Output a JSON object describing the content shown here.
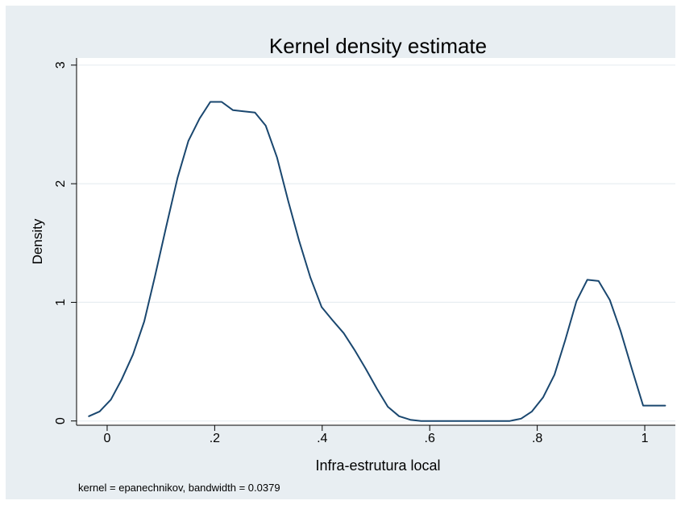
{
  "chart_data": {
    "type": "line",
    "title": "Kernel density estimate",
    "xlabel": "Infra-estrutura local",
    "ylabel": "Density",
    "note": "kernel = epanechnikov, bandwidth = 0.0379",
    "xlim": [
      -0.0569,
      1.0569
    ],
    "ylim": [
      -0.036,
      3.06
    ],
    "x_ticks": [
      0,
      0.2,
      0.4,
      0.6,
      0.8,
      1
    ],
    "x_tick_labels": [
      "0",
      ".2",
      ".4",
      ".6",
      ".8",
      "1"
    ],
    "y_ticks": [
      0,
      1,
      2,
      3
    ],
    "y_tick_labels": [
      "0",
      "1",
      "2",
      "3"
    ],
    "grid": true,
    "legend": "none",
    "colors": {
      "outer_background": "#e8eef2",
      "plot_background": "#ffffff",
      "line": "#1a476f",
      "grid": "#e8eef2"
    },
    "series": [
      {
        "x": [
          -0.034,
          -0.014,
          0.007,
          0.027,
          0.048,
          0.069,
          0.089,
          0.11,
          0.131,
          0.151,
          0.172,
          0.192,
          0.213,
          0.234,
          0.254,
          0.275,
          0.295,
          0.316,
          0.337,
          0.357,
          0.378,
          0.399,
          0.419,
          0.44,
          0.46,
          0.481,
          0.502,
          0.522,
          0.543,
          0.564,
          0.584,
          0.605,
          0.625,
          0.646,
          0.667,
          0.687,
          0.708,
          0.729,
          0.749,
          0.77,
          0.79,
          0.811,
          0.832,
          0.852,
          0.873,
          0.893,
          0.914,
          0.935,
          0.955,
          0.976,
          0.997,
          1.017,
          1.038
        ],
        "y": [
          0.04,
          0.08,
          0.18,
          0.35,
          0.56,
          0.84,
          1.22,
          1.64,
          2.05,
          2.36,
          2.55,
          2.69,
          2.69,
          2.62,
          2.61,
          2.6,
          2.49,
          2.22,
          1.85,
          1.52,
          1.21,
          0.96,
          0.85,
          0.74,
          0.6,
          0.44,
          0.27,
          0.12,
          0.04,
          0.01,
          0.0,
          0.0,
          0.0,
          0.0,
          0.0,
          0.0,
          0.0,
          0.0,
          0.0,
          0.02,
          0.08,
          0.2,
          0.39,
          0.68,
          1.01,
          1.19,
          1.18,
          1.02,
          0.76,
          0.44,
          0.13,
          0.13,
          0.13
        ]
      }
    ]
  }
}
